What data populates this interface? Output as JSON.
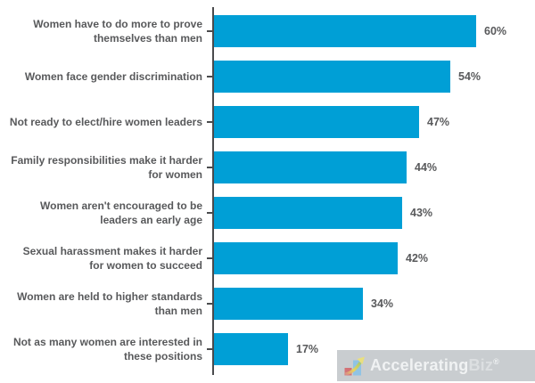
{
  "chart_data": {
    "type": "bar",
    "orientation": "horizontal",
    "title": "",
    "categories": [
      "Women have to do more to prove\nthemselves than men",
      "Women face gender discrimination",
      "Not ready to elect/hire women leaders",
      "Family responsibilities make it harder\nfor women",
      "Women aren't encouraged to be\nleaders an early age",
      "Sexual harassment makes it harder\nfor women to succeed",
      "Women are held to higher standards\nthan men",
      "Not as many women are interested in\nthese positions"
    ],
    "values": [
      60,
      54,
      47,
      44,
      43,
      42,
      34,
      17
    ],
    "value_labels": [
      "60%",
      "54%",
      "47%",
      "44%",
      "43%",
      "42%",
      "34%",
      "17%"
    ],
    "xlim": [
      0,
      70
    ],
    "grid": false,
    "legend": false,
    "data_labels_position": "outside-end",
    "bar_color": "#009fd6",
    "label_color": "#58595b",
    "axis_color": "#4a4b4d"
  },
  "watermark": {
    "brand_primary": "Accelerating",
    "brand_secondary": "Biz",
    "registered_mark": "®",
    "icon": "growth-chart-arrow-icon",
    "background_color": "#c9cdd0",
    "primary_text_color": "#f0f2f3",
    "secondary_text_color": "#dcdfe1"
  }
}
